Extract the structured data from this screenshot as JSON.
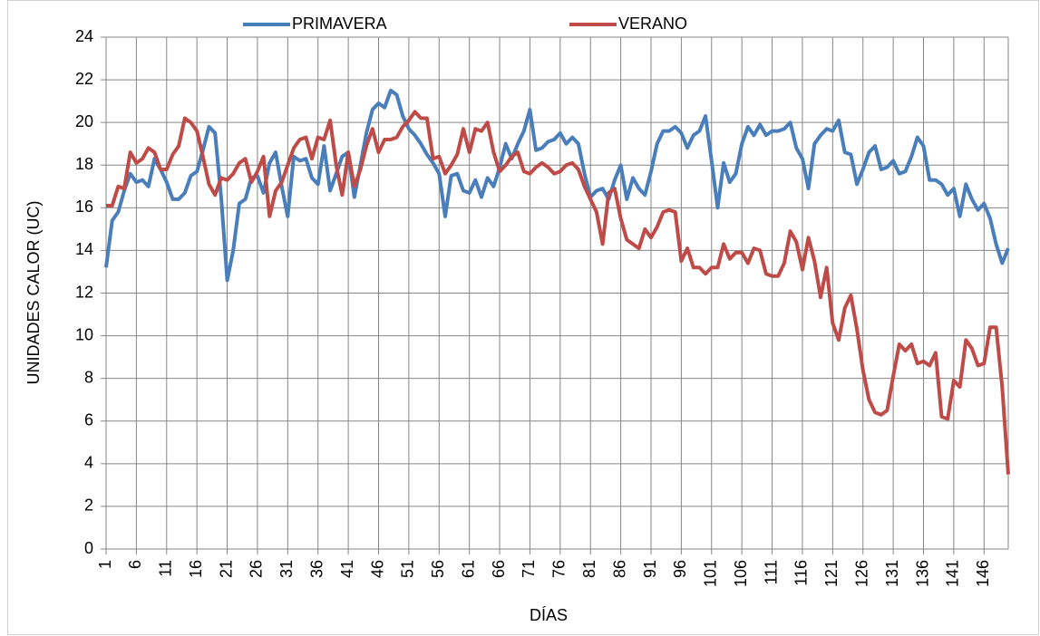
{
  "chart_data": {
    "type": "line",
    "x_label": "DÍAS",
    "y_label": "UNIDADES CALOR (UC)",
    "x": [
      1,
      2,
      3,
      4,
      5,
      6,
      7,
      8,
      9,
      10,
      11,
      12,
      13,
      14,
      15,
      16,
      17,
      18,
      19,
      20,
      21,
      22,
      23,
      24,
      25,
      26,
      27,
      28,
      29,
      30,
      31,
      32,
      33,
      34,
      35,
      36,
      37,
      38,
      39,
      40,
      41,
      42,
      43,
      44,
      45,
      46,
      47,
      48,
      49,
      50,
      51,
      52,
      53,
      54,
      55,
      56,
      57,
      58,
      59,
      60,
      61,
      62,
      63,
      64,
      65,
      66,
      67,
      68,
      69,
      70,
      71,
      72,
      73,
      74,
      75,
      76,
      77,
      78,
      79,
      80,
      81,
      82,
      83,
      84,
      85,
      86,
      87,
      88,
      89,
      90,
      91,
      92,
      93,
      94,
      95,
      96,
      97,
      98,
      99,
      100,
      101,
      102,
      103,
      104,
      105,
      106,
      107,
      108,
      109,
      110,
      111,
      112,
      113,
      114,
      115,
      116,
      117,
      118,
      119,
      120,
      121,
      122,
      123,
      124,
      125,
      126,
      127,
      128,
      129,
      130,
      131,
      132,
      133,
      134,
      135,
      136,
      137,
      138,
      139,
      140,
      141,
      142,
      143,
      144,
      145,
      146,
      147,
      148,
      149,
      150
    ],
    "series": [
      {
        "name": "PRIMAVERA",
        "color": "#4a7ebb",
        "values": [
          13.2,
          15.4,
          15.8,
          16.8,
          17.6,
          17.2,
          17.3,
          17.0,
          18.3,
          17.8,
          17.2,
          16.4,
          16.4,
          16.7,
          17.5,
          17.7,
          18.7,
          19.8,
          19.5,
          16.5,
          12.6,
          14.0,
          16.2,
          16.4,
          17.4,
          17.5,
          16.7,
          18.1,
          18.6,
          17.0,
          15.6,
          18.4,
          18.2,
          18.3,
          17.4,
          17.1,
          18.9,
          16.8,
          17.6,
          18.4,
          18.6,
          16.5,
          18.0,
          19.5,
          20.6,
          20.9,
          20.7,
          21.5,
          21.3,
          20.3,
          19.7,
          19.4,
          19.0,
          18.5,
          18.1,
          17.6,
          15.6,
          17.5,
          17.6,
          16.8,
          16.7,
          17.3,
          16.5,
          17.4,
          17.0,
          17.9,
          19.0,
          18.3,
          19.0,
          19.6,
          20.6,
          18.7,
          18.8,
          19.1,
          19.2,
          19.5,
          19.0,
          19.3,
          19.0,
          17.6,
          16.5,
          16.8,
          16.9,
          16.4,
          17.3,
          18.0,
          16.4,
          17.4,
          16.9,
          16.6,
          17.7,
          19.0,
          19.6,
          19.6,
          19.8,
          19.5,
          18.8,
          19.4,
          19.6,
          20.3,
          18.2,
          16.0,
          18.1,
          17.2,
          17.6,
          19.0,
          19.8,
          19.4,
          19.9,
          19.4,
          19.6,
          19.6,
          19.7,
          20.0,
          18.8,
          18.3,
          16.9,
          19.0,
          19.4,
          19.7,
          19.6,
          20.1,
          18.6,
          18.5,
          17.1,
          17.8,
          18.6,
          18.9,
          17.8,
          17.9,
          18.2,
          17.6,
          17.7,
          18.4,
          19.3,
          18.9,
          17.3,
          17.3,
          17.1,
          16.6,
          16.9,
          15.6,
          17.1,
          16.4,
          15.9,
          16.2,
          15.5,
          14.3,
          13.4,
          14.1
        ]
      },
      {
        "name": "VERANO",
        "color": "#be4b48",
        "values": [
          16.1,
          16.1,
          17.0,
          16.9,
          18.6,
          18.1,
          18.3,
          18.8,
          18.6,
          17.8,
          17.8,
          18.5,
          18.9,
          20.2,
          20.0,
          19.6,
          18.4,
          17.1,
          16.6,
          17.4,
          17.3,
          17.6,
          18.1,
          18.3,
          17.2,
          17.7,
          18.4,
          15.6,
          16.8,
          17.2,
          18.0,
          18.8,
          19.2,
          19.3,
          18.3,
          19.3,
          19.2,
          20.1,
          18.0,
          16.6,
          18.6,
          17.0,
          17.8,
          18.9,
          19.7,
          18.6,
          19.2,
          19.2,
          19.3,
          19.8,
          20.1,
          20.5,
          20.2,
          20.2,
          18.3,
          18.4,
          17.6,
          18.0,
          18.5,
          19.7,
          18.6,
          19.7,
          19.6,
          20.0,
          18.6,
          17.7,
          18.0,
          18.4,
          18.6,
          17.7,
          17.6,
          17.9,
          18.1,
          17.9,
          17.6,
          17.7,
          18.0,
          18.1,
          17.8,
          17.0,
          16.4,
          15.8,
          14.3,
          16.7,
          16.9,
          15.5,
          14.5,
          14.3,
          14.1,
          15.0,
          14.6,
          15.1,
          15.8,
          15.9,
          15.8,
          13.5,
          14.1,
          13.2,
          13.2,
          12.9,
          13.2,
          13.2,
          14.3,
          13.6,
          13.9,
          13.9,
          13.4,
          14.1,
          14.0,
          12.9,
          12.8,
          12.8,
          13.4,
          14.9,
          14.4,
          13.1,
          14.6,
          13.5,
          11.8,
          13.2,
          10.6,
          9.8,
          11.3,
          11.9,
          10.3,
          8.4,
          7.0,
          6.4,
          6.3,
          6.5,
          8.1,
          9.6,
          9.3,
          9.6,
          8.7,
          8.8,
          8.6,
          9.2,
          6.2,
          6.1,
          7.9,
          7.6,
          9.8,
          9.4,
          8.6,
          8.7,
          10.4,
          10.4,
          7.6,
          3.5
        ]
      }
    ],
    "xlim": [
      1,
      150
    ],
    "xticks": [
      1,
      6,
      11,
      16,
      21,
      26,
      31,
      36,
      41,
      46,
      51,
      56,
      61,
      66,
      71,
      76,
      81,
      86,
      91,
      96,
      101,
      106,
      111,
      116,
      121,
      126,
      131,
      136,
      141,
      146
    ],
    "ylim": [
      0,
      24
    ],
    "yticks": [
      0,
      2,
      4,
      6,
      8,
      10,
      12,
      14,
      16,
      18,
      20,
      22,
      24
    ],
    "grid": true,
    "legend": "top"
  }
}
